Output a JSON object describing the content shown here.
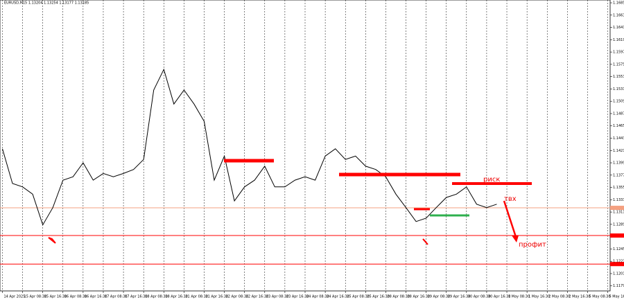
{
  "chart_data": {
    "type": "line",
    "title": "EURUSD,M15  1.13204 1.13254 1.13177 1.13185",
    "annotations": [
      "риск",
      "твх",
      "профит"
    ],
    "x": [
      0,
      0.5,
      1,
      1.5,
      2,
      2.5,
      3,
      3.5,
      4,
      4.5,
      5,
      5.5,
      6,
      6.5,
      7,
      7.5,
      8,
      8.5,
      9,
      9.5,
      10,
      10.5,
      11,
      11.5,
      12,
      12.5,
      13,
      13.5,
      14,
      14.5,
      15,
      15.5,
      16,
      16.5,
      17,
      17.5,
      18,
      18.5,
      19,
      19.5,
      20,
      20.5,
      21,
      21.5,
      22,
      22.5,
      23,
      23.5,
      24,
      24.5
    ],
    "series": [
      {
        "name": "EURUSD",
        "color": "#000000",
        "values": [
          1.1424,
          1.1362,
          1.1356,
          1.1343,
          1.1288,
          1.1319,
          1.1368,
          1.1374,
          1.1399,
          1.1368,
          1.138,
          1.1374,
          1.138,
          1.1387,
          1.1405,
          1.1529,
          1.1566,
          1.1504,
          1.1529,
          1.1504,
          1.1473,
          1.1368,
          1.1411,
          1.1331,
          1.1356,
          1.1368,
          1.1393,
          1.1356,
          1.1356,
          1.1368,
          1.1374,
          1.1368,
          1.1411,
          1.1424,
          1.1405,
          1.1411,
          1.1393,
          1.1387,
          1.1374,
          1.1343,
          1.1319,
          1.1294,
          1.13,
          1.1319,
          1.1337,
          1.1343,
          1.1356,
          1.1325,
          1.1319,
          1.1325
        ]
      }
    ],
    "levels": [
      {
        "value": 1.13185,
        "color": "#f4a080"
      },
      {
        "value": 1.1269,
        "color": "#ff0000"
      },
      {
        "value": 1.1218,
        "color": "#ff0000"
      }
    ],
    "xlim": [
      -0.05,
      30.05
    ],
    "xticks": [
      {
        "value": 0,
        "label": "14 Apr 2025"
      },
      {
        "value": 1,
        "label": "15 Apr 08:30"
      },
      {
        "value": 2,
        "label": "15 Apr 16:30"
      },
      {
        "value": 3,
        "label": "16 Apr 08:30"
      },
      {
        "value": 4,
        "label": "16 Apr 16:30"
      },
      {
        "value": 5,
        "label": "17 Apr 08:30"
      },
      {
        "value": 6,
        "label": "17 Apr 16:30"
      },
      {
        "value": 7,
        "label": "18 Apr 08:30"
      },
      {
        "value": 8,
        "label": "18 Apr 16:30"
      },
      {
        "value": 9,
        "label": "21 Apr 08:30"
      },
      {
        "value": 10,
        "label": "21 Apr 16:30"
      },
      {
        "value": 11,
        "label": "22 Apr 08:30"
      },
      {
        "value": 12,
        "label": "22 Apr 16:30"
      },
      {
        "value": 13,
        "label": "23 Apr 08:30"
      },
      {
        "value": 14,
        "label": "23 Apr 16:30"
      },
      {
        "value": 15,
        "label": "24 Apr 08:30"
      },
      {
        "value": 16,
        "label": "24 Apr 16:30"
      },
      {
        "value": 17,
        "label": "25 Apr 08:30"
      },
      {
        "value": 18,
        "label": "25 Apr 16:30"
      },
      {
        "value": 19,
        "label": "28 Apr 08:30"
      },
      {
        "value": 20,
        "label": "28 Apr 16:30"
      },
      {
        "value": 21,
        "label": "29 Apr 08:30"
      },
      {
        "value": 22,
        "label": "29 Apr 16:30"
      },
      {
        "value": 23,
        "label": "30 Apr 08:30"
      },
      {
        "value": 24,
        "label": "30 Apr 16:30"
      },
      {
        "value": 25,
        "label": "1 May 08:30"
      },
      {
        "value": 26,
        "label": "1 May 16:30"
      },
      {
        "value": 27,
        "label": "2 May 08:30"
      },
      {
        "value": 28,
        "label": "2 May 16:30"
      },
      {
        "value": 29,
        "label": "5 May 08:30"
      },
      {
        "value": 30,
        "label": "5 May 16:30"
      }
    ],
    "ylim": [
      1.117,
      1.169
    ],
    "yticks": [
      {
        "value": 1.1685,
        "label": "1.16850"
      },
      {
        "value": 1.1663,
        "label": "1.16630"
      },
      {
        "value": 1.1641,
        "label": "1.16410"
      },
      {
        "value": 1.1619,
        "label": "1.16190"
      },
      {
        "value": 1.1597,
        "label": "1.15970"
      },
      {
        "value": 1.1575,
        "label": "1.15750"
      },
      {
        "value": 1.1553,
        "label": "1.15530"
      },
      {
        "value": 1.1531,
        "label": "1.15310"
      },
      {
        "value": 1.1509,
        "label": "1.15090"
      },
      {
        "value": 1.1487,
        "label": "1.14870"
      },
      {
        "value": 1.1465,
        "label": "1.14650"
      },
      {
        "value": 1.1443,
        "label": "1.14430"
      },
      {
        "value": 1.1421,
        "label": "1.14210"
      },
      {
        "value": 1.1399,
        "label": "1.13990"
      },
      {
        "value": 1.1377,
        "label": "1.13770"
      },
      {
        "value": 1.1355,
        "label": "1.13550"
      },
      {
        "value": 1.1333,
        "label": "1.13330"
      },
      {
        "value": 1.1311,
        "label": "1.13110"
      },
      {
        "value": 1.1289,
        "label": "1.12890"
      },
      {
        "value": 1.1267,
        "label": "1.12670"
      },
      {
        "value": 1.1245,
        "label": "1.12450"
      },
      {
        "value": 1.1223,
        "label": "1.12230"
      },
      {
        "value": 1.1201,
        "label": "1.12010"
      },
      {
        "value": 1.1179,
        "label": "1.11790"
      }
    ],
    "grid": true
  }
}
